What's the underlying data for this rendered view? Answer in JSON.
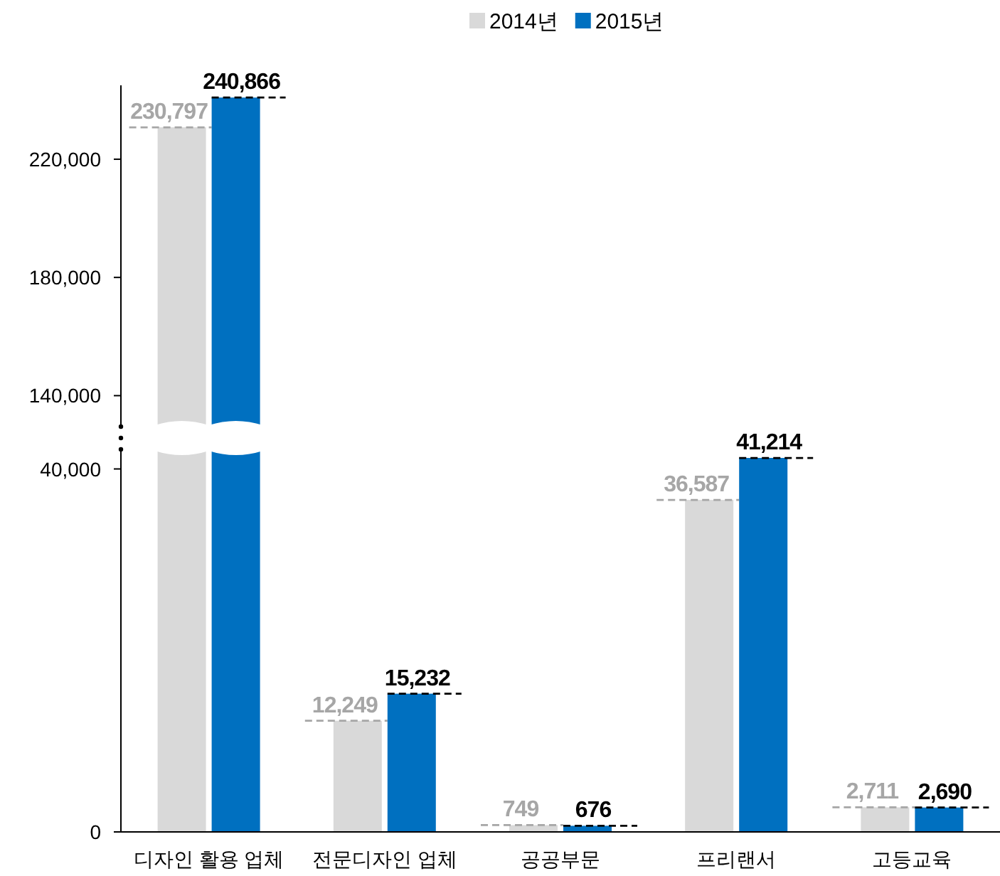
{
  "chart_data": [
    {
      "type": "bar",
      "categories": [
        null
      ],
      "series": [
        {
          "name": "2014년",
          "color": "#d9d9d9",
          "values": [
            230797
          ],
          "value_labels": [
            "230,797"
          ]
        },
        {
          "name": "2015년",
          "color": "#0070c0",
          "values": [
            240866
          ],
          "value_labels": [
            "240,866"
          ]
        }
      ],
      "ylim": [
        130000,
        245000
      ],
      "yticks": [
        {
          "value": 140000,
          "label": "140,000"
        },
        {
          "value": 180000,
          "label": "180,000"
        },
        {
          "value": 220000,
          "label": "220,000"
        }
      ],
      "tick_labels": "y",
      "legend": "top"
    },
    {
      "type": "bar",
      "categories": [
        "디자인 활용 업체",
        "전문디자인 업체",
        "공공부문",
        "프리랜서",
        "고등교육"
      ],
      "series": [
        {
          "color": "#d9d9d9",
          "values": [
            null,
            12249,
            749,
            36587,
            2711
          ],
          "value_labels": [
            null,
            "12,249",
            "749",
            "36,587",
            "2,711"
          ]
        },
        {
          "color": "#0070c0",
          "values": [
            null,
            15232,
            676,
            41214,
            2690
          ],
          "value_labels": [
            null,
            "15,232",
            "676",
            "41,214",
            "2,690"
          ]
        }
      ],
      "ylim": [
        0,
        42000
      ],
      "yticks": [
        0,
        {
          "value": 40000,
          "label": "40,000"
        }
      ]
    }
  ]
}
